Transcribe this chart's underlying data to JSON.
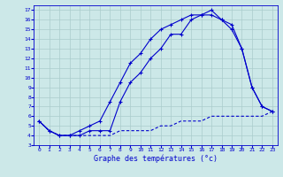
{
  "title": "Graphe des températures (°c)",
  "bg_color": "#cce8e8",
  "grid_color": "#aacccc",
  "line_color": "#0000cc",
  "xlim": [
    -0.5,
    23.5
  ],
  "ylim": [
    3,
    17.5
  ],
  "xticks": [
    0,
    1,
    2,
    3,
    4,
    5,
    6,
    7,
    8,
    9,
    10,
    11,
    12,
    13,
    14,
    15,
    16,
    17,
    18,
    19,
    20,
    21,
    22,
    23
  ],
  "yticks": [
    3,
    4,
    5,
    6,
    7,
    8,
    9,
    10,
    11,
    12,
    13,
    14,
    15,
    16,
    17
  ],
  "hours": [
    0,
    1,
    2,
    3,
    4,
    5,
    6,
    7,
    8,
    9,
    10,
    11,
    12,
    13,
    14,
    15,
    16,
    17,
    18,
    19,
    20,
    21,
    22,
    23
  ],
  "tmax": [
    5.5,
    4.5,
    4.0,
    4.0,
    4.5,
    5.0,
    5.5,
    7.5,
    9.5,
    11.5,
    12.5,
    14.0,
    15.0,
    15.5,
    16.0,
    16.5,
    16.5,
    17.0,
    16.0,
    15.5,
    13.0,
    9.0,
    7.0,
    6.5
  ],
  "tmoy": [
    5.5,
    4.5,
    4.0,
    4.0,
    4.0,
    4.5,
    4.5,
    4.5,
    7.5,
    9.5,
    10.5,
    12.0,
    13.0,
    14.5,
    14.5,
    16.0,
    16.5,
    16.5,
    16.0,
    15.0,
    13.0,
    9.0,
    7.0,
    6.5
  ],
  "tmin": [
    5.5,
    4.5,
    4.0,
    4.0,
    4.0,
    4.0,
    4.0,
    4.0,
    4.5,
    4.5,
    4.5,
    4.5,
    5.0,
    5.0,
    5.5,
    5.5,
    5.5,
    6.0,
    6.0,
    6.0,
    6.0,
    6.0,
    6.0,
    6.5
  ]
}
